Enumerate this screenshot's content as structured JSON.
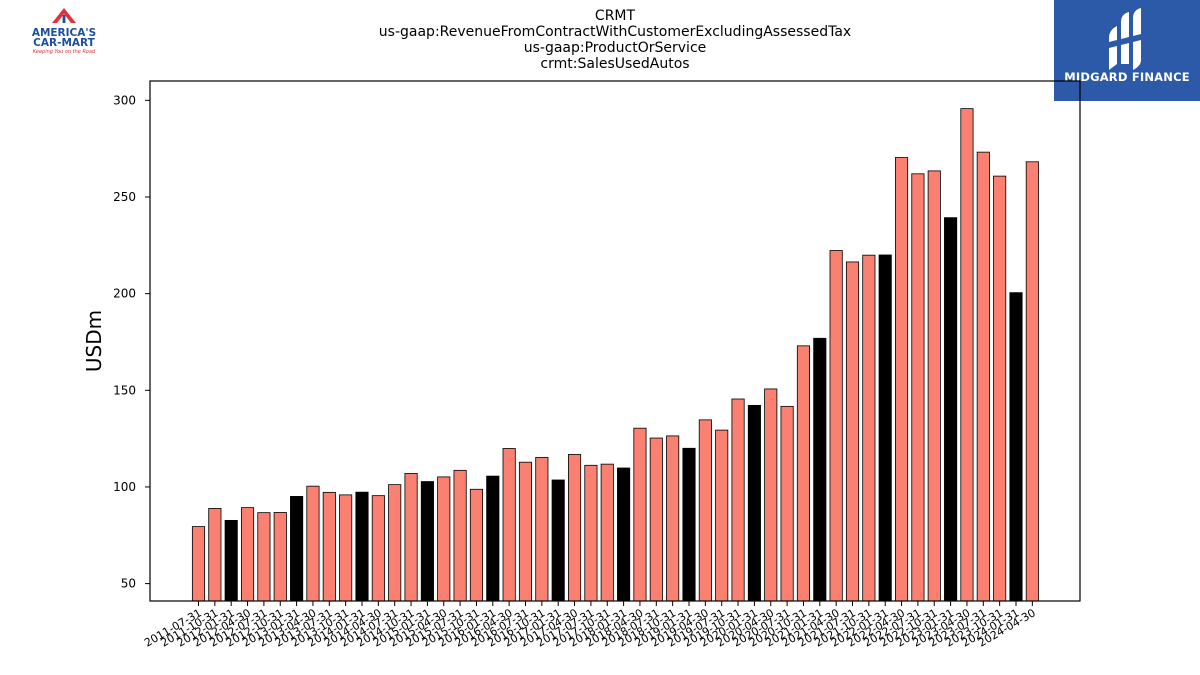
{
  "brand_left": {
    "line1": "AMERICA'S",
    "line2": "CAR-MART",
    "tagline": "Keeping You on the Road",
    "colors": {
      "red": "#e0323c",
      "blue": "#1c4f9c"
    }
  },
  "brand_right": {
    "name": "MIDGARD FINANCE",
    "colors": {
      "background": "#2d5aa8",
      "text": "#ffffff"
    }
  },
  "chart_data": {
    "type": "bar",
    "title_lines": [
      "CRMT",
      "us-gaap:RevenueFromContractWithCustomerExcludingAssessedTax",
      "us-gaap:ProductOrService",
      "crmt:SalesUsedAutos"
    ],
    "xlabel": "",
    "ylabel": "USDm",
    "ylim": [
      41,
      310
    ],
    "yticks": [
      50,
      100,
      150,
      200,
      250,
      300
    ],
    "grid": false,
    "legend": "none",
    "colors": {
      "quarter": "#fa8072",
      "fiscal_year_end": "#000000",
      "edge": "#000000"
    },
    "categories": [
      "2011-07-31",
      "2011-10-31",
      "2012-01-31",
      "2012-04-30",
      "2012-07-31",
      "2012-10-31",
      "2013-01-31",
      "2013-04-30",
      "2013-07-31",
      "2013-10-31",
      "2014-01-31",
      "2014-04-30",
      "2014-07-31",
      "2014-10-31",
      "2015-01-31",
      "2015-04-30",
      "2015-07-31",
      "2015-10-31",
      "2016-01-31",
      "2016-04-30",
      "2016-07-31",
      "2016-10-31",
      "2017-01-31",
      "2017-04-30",
      "2017-07-31",
      "2017-10-31",
      "2018-01-31",
      "2018-04-30",
      "2018-07-31",
      "2018-10-31",
      "2019-01-31",
      "2019-04-30",
      "2019-07-31",
      "2019-10-31",
      "2020-01-31",
      "2020-04-30",
      "2020-07-31",
      "2020-10-31",
      "2021-01-31",
      "2021-04-30",
      "2021-07-31",
      "2021-10-31",
      "2022-01-31",
      "2022-04-30",
      "2022-07-31",
      "2022-10-31",
      "2023-01-31",
      "2023-04-30",
      "2023-07-31",
      "2023-10-31",
      "2024-01-31",
      "2024-04-30"
    ],
    "values": [
      79.5,
      88.9,
      82.7,
      89.3,
      86.7,
      86.8,
      95.1,
      100.4,
      97.2,
      95.9,
      97.3,
      95.5,
      101.2,
      107.0,
      102.8,
      105.2,
      108.6,
      98.8,
      105.6,
      119.9,
      112.8,
      115.3,
      103.6,
      116.8,
      111.2,
      111.8,
      109.8,
      130.4,
      125.3,
      126.4,
      120.0,
      134.7,
      129.4,
      145.5,
      142.2,
      150.7,
      141.7,
      173.0,
      176.9,
      222.3,
      216.4,
      219.9,
      220.0,
      270.4,
      262.0,
      263.5,
      239.3,
      295.7,
      273.2,
      260.8,
      200.5,
      268.2
    ],
    "highlight": [
      false,
      false,
      true,
      false,
      false,
      false,
      true,
      false,
      false,
      false,
      true,
      false,
      false,
      false,
      true,
      false,
      false,
      false,
      true,
      false,
      false,
      false,
      true,
      false,
      false,
      false,
      true,
      false,
      false,
      false,
      true,
      false,
      false,
      false,
      true,
      false,
      false,
      false,
      true,
      false,
      false,
      false,
      true,
      false,
      false,
      false,
      true,
      false,
      false,
      false,
      true,
      false
    ]
  }
}
